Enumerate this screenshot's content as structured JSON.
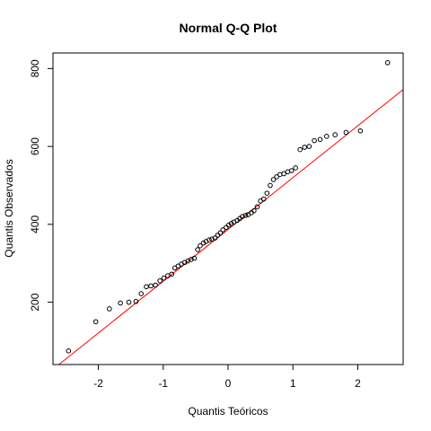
{
  "chart_data": {
    "type": "scatter",
    "title": "Normal Q-Q Plot",
    "xlabel": "Quantis Teóricos",
    "ylabel": "Quantis Observados",
    "xlim": [
      -2.7,
      2.7
    ],
    "ylim": [
      40,
      840
    ],
    "xticks": [
      -2,
      -1,
      0,
      1,
      2
    ],
    "yticks": [
      200,
      400,
      600,
      800
    ],
    "grid": false,
    "colors": {
      "points": "#000000",
      "line": "#ff0000",
      "axes": "#000000"
    },
    "reference_line": {
      "intercept": 387,
      "slope": 133
    },
    "series": [
      {
        "x": [
          -2.46,
          -2.04,
          -1.83,
          -1.66,
          -1.53,
          -1.42,
          -1.34,
          -1.26,
          -1.19,
          -1.12,
          -1.05,
          -0.99,
          -0.93,
          -0.87,
          -0.82,
          -0.77,
          -0.72,
          -0.67,
          -0.62,
          -0.57,
          -0.52,
          -0.47,
          -0.43,
          -0.38,
          -0.34,
          -0.29,
          -0.25,
          -0.2,
          -0.16,
          -0.12,
          -0.08,
          -0.03,
          0.01,
          0.05,
          0.09,
          0.14,
          0.18,
          0.22,
          0.27,
          0.31,
          0.36,
          0.4,
          0.45,
          0.5,
          0.55,
          0.6,
          0.65,
          0.7,
          0.75,
          0.8,
          0.86,
          0.92,
          0.98,
          1.04,
          1.11,
          1.18,
          1.25,
          1.33,
          1.42,
          1.52,
          1.65,
          1.82,
          2.04,
          2.46
        ],
        "y": [
          75,
          150,
          183,
          198,
          200,
          202,
          222,
          240,
          242,
          244,
          255,
          262,
          268,
          272,
          288,
          293,
          298,
          302,
          306,
          310,
          313,
          335,
          345,
          352,
          356,
          360,
          362,
          365,
          372,
          378,
          386,
          392,
          398,
          402,
          406,
          410,
          415,
          420,
          423,
          425,
          430,
          435,
          445,
          460,
          465,
          480,
          500,
          515,
          522,
          528,
          530,
          535,
          538,
          545,
          592,
          598,
          600,
          615,
          618,
          626,
          630,
          636,
          640,
          815
        ]
      }
    ]
  }
}
